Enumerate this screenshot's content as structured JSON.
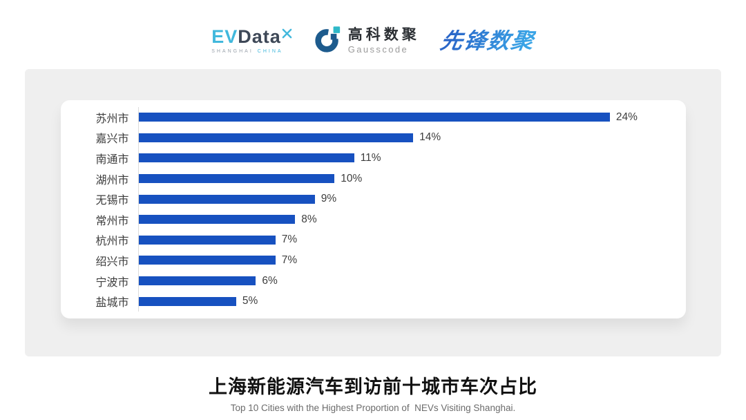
{
  "header": {
    "evdata": {
      "ev": "EV",
      "data": "Data",
      "sub_left": "SHANGHAI",
      "sub_right": "CHINA"
    },
    "gausscode": {
      "name_cn": "高科数聚",
      "name_en": "Gausscode"
    },
    "pioneer": {
      "name_cn": "先锋数聚"
    }
  },
  "chart_data": {
    "type": "bar",
    "orientation": "horizontal",
    "title": "上海新能源汽车到访前十城市车次占比",
    "subtitle": "Top 10 Cities with the Highest Proportion of  NEVs Visiting Shanghai.",
    "categories": [
      "苏州市",
      "嘉兴市",
      "南通市",
      "湖州市",
      "无锡市",
      "常州市",
      "杭州市",
      "绍兴市",
      "宁波市",
      "盐城市"
    ],
    "values": [
      24,
      14,
      11,
      10,
      9,
      8,
      7,
      7,
      6,
      5
    ],
    "value_labels": [
      "24%",
      "14%",
      "11%",
      "10%",
      "9%",
      "8%",
      "7%",
      "7%",
      "6%",
      "5%"
    ],
    "xlim": [
      0,
      25
    ],
    "grid": false,
    "legend": false,
    "bar_color": "#1751C0",
    "axis_line_color": "#DCDCDC",
    "label_color": "#3D3D3D",
    "accent_colors": {
      "evdata_cyan": "#41B8DC",
      "evdata_dark": "#3E4857",
      "gauss_blue": "#1D5B8D",
      "gauss_cyan": "#2EB8C8",
      "pioneer_blue": "#2F7CCB"
    }
  },
  "footer": {
    "title": "上海新能源汽车到访前十城市车次占比",
    "subtitle": "Top 10 Cities with the Highest Proportion of  NEVs Visiting Shanghai."
  }
}
